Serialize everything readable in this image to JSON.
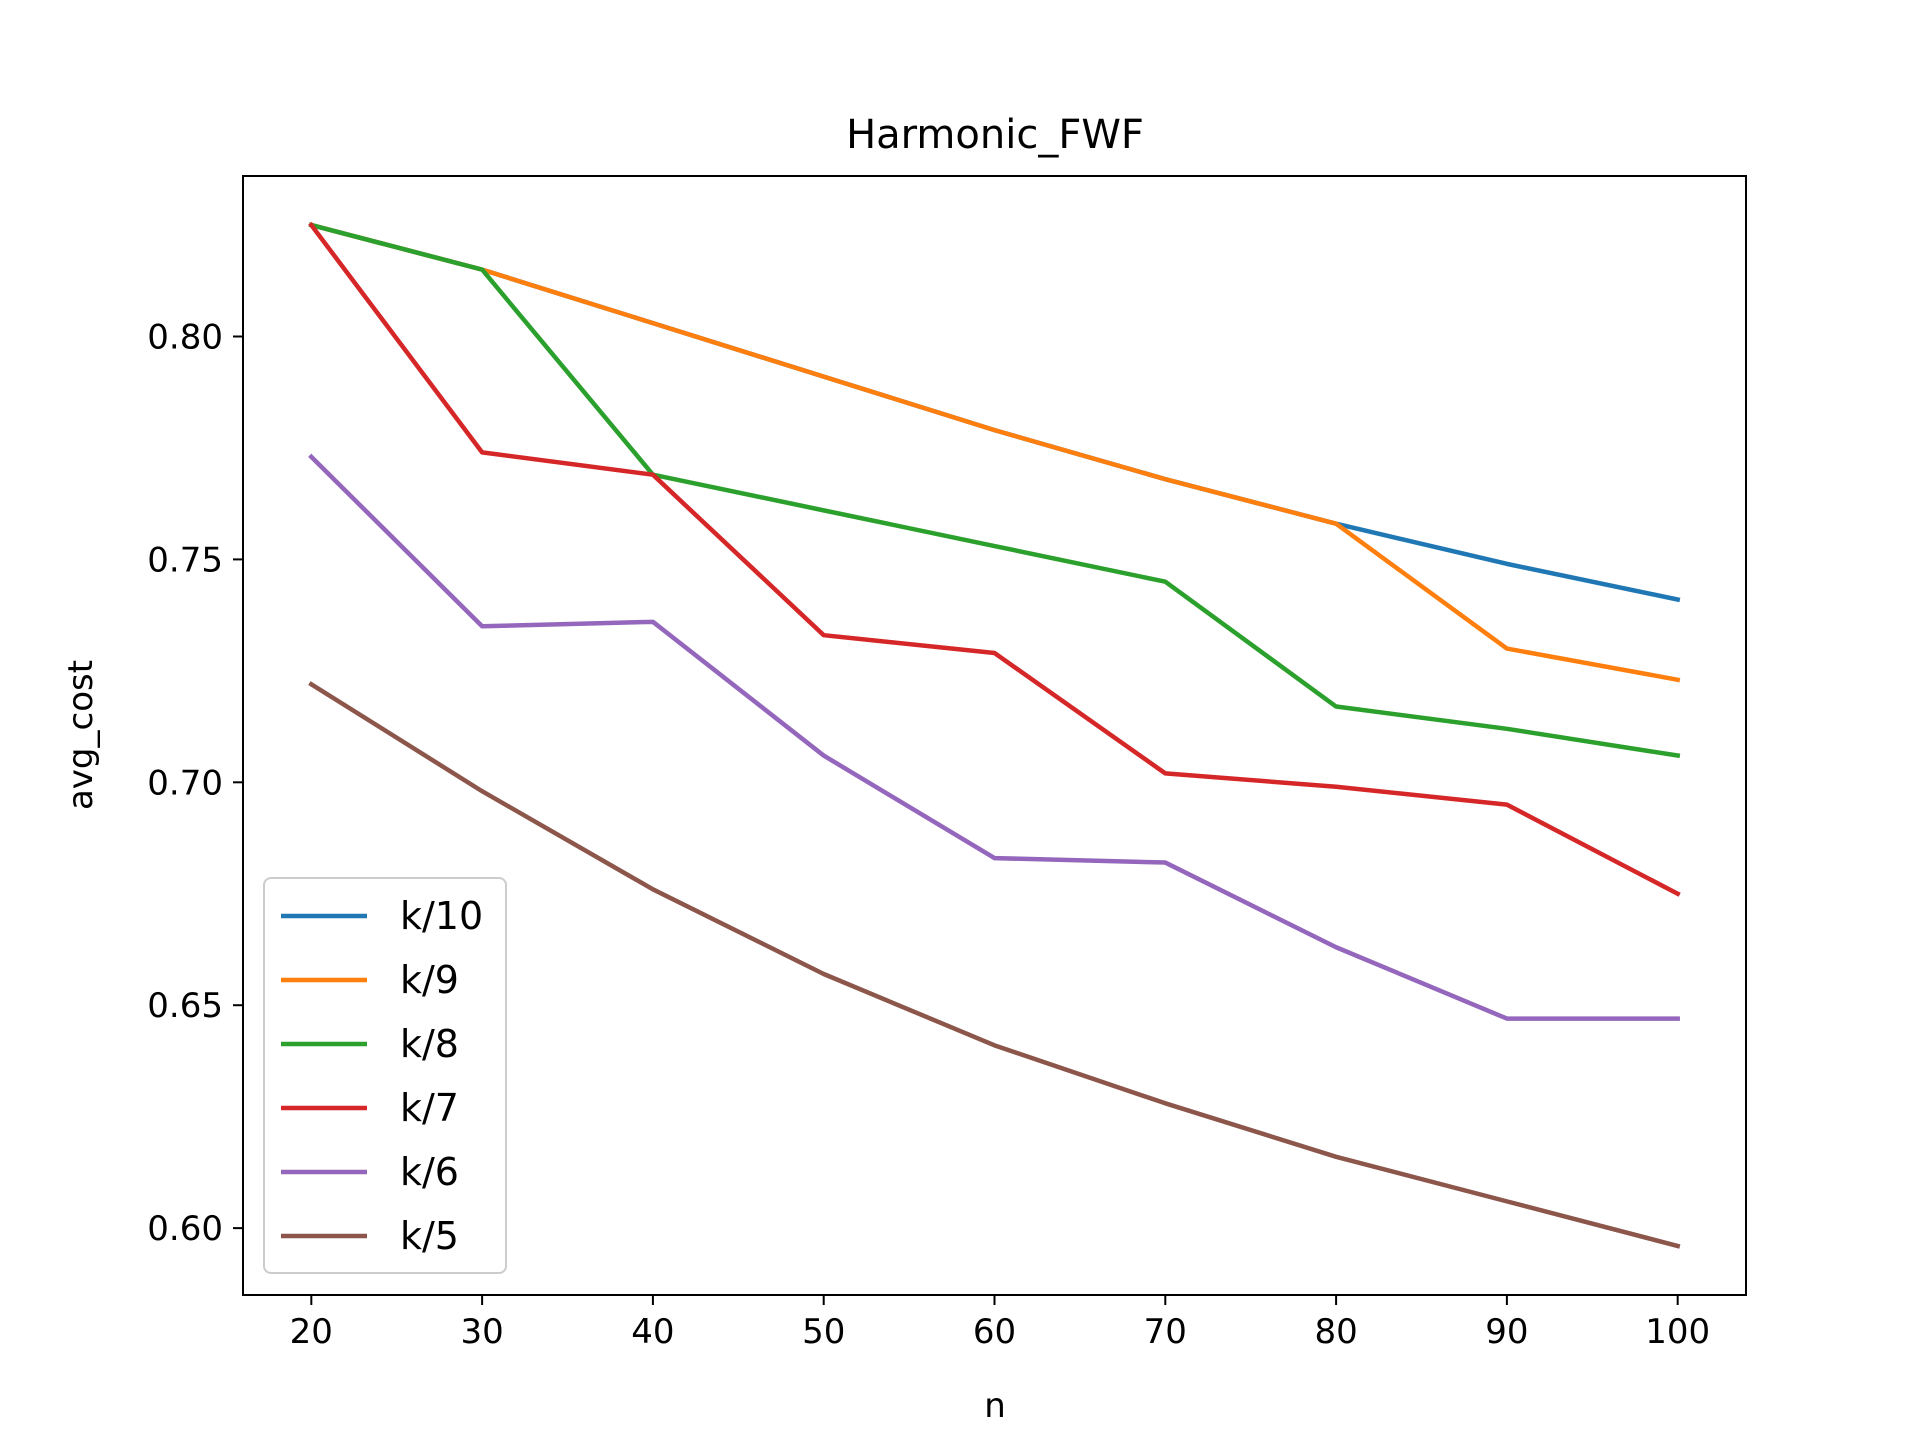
{
  "chart_data": {
    "type": "line",
    "title": "Harmonic_FWF",
    "xlabel": "n",
    "ylabel": "avg_cost",
    "x": [
      20,
      30,
      40,
      50,
      60,
      70,
      80,
      90,
      100
    ],
    "xticks": [
      20,
      30,
      40,
      50,
      60,
      70,
      80,
      90,
      100
    ],
    "xlim": [
      16,
      104
    ],
    "yticks": [
      0.6,
      0.65,
      0.7,
      0.75,
      0.8
    ],
    "ytick_labels": [
      "0.60",
      "0.65",
      "0.70",
      "0.75",
      "0.80"
    ],
    "ylim": [
      0.585,
      0.836
    ],
    "grid": false,
    "legend_position": "lower-left",
    "series": [
      {
        "name": "k/10",
        "color": "#1f77b4",
        "values": [
          0.825,
          0.815,
          0.803,
          0.791,
          0.779,
          0.768,
          0.758,
          0.749,
          0.741
        ]
      },
      {
        "name": "k/9",
        "color": "#ff7f0e",
        "values": [
          0.825,
          0.815,
          0.803,
          0.791,
          0.779,
          0.768,
          0.758,
          0.73,
          0.723
        ]
      },
      {
        "name": "k/8",
        "color": "#2ca02c",
        "values": [
          0.825,
          0.815,
          0.769,
          0.761,
          0.753,
          0.745,
          0.717,
          0.712,
          0.706
        ]
      },
      {
        "name": "k/7",
        "color": "#d62728",
        "values": [
          0.825,
          0.774,
          0.769,
          0.733,
          0.729,
          0.702,
          0.699,
          0.695,
          0.675
        ]
      },
      {
        "name": "k/6",
        "color": "#9467bd",
        "values": [
          0.773,
          0.735,
          0.736,
          0.706,
          0.683,
          0.682,
          0.663,
          0.647,
          0.647
        ]
      },
      {
        "name": "k/5",
        "color": "#8c564b",
        "values": [
          0.722,
          0.698,
          0.676,
          0.657,
          0.641,
          0.628,
          0.616,
          0.606,
          0.596
        ]
      }
    ]
  }
}
